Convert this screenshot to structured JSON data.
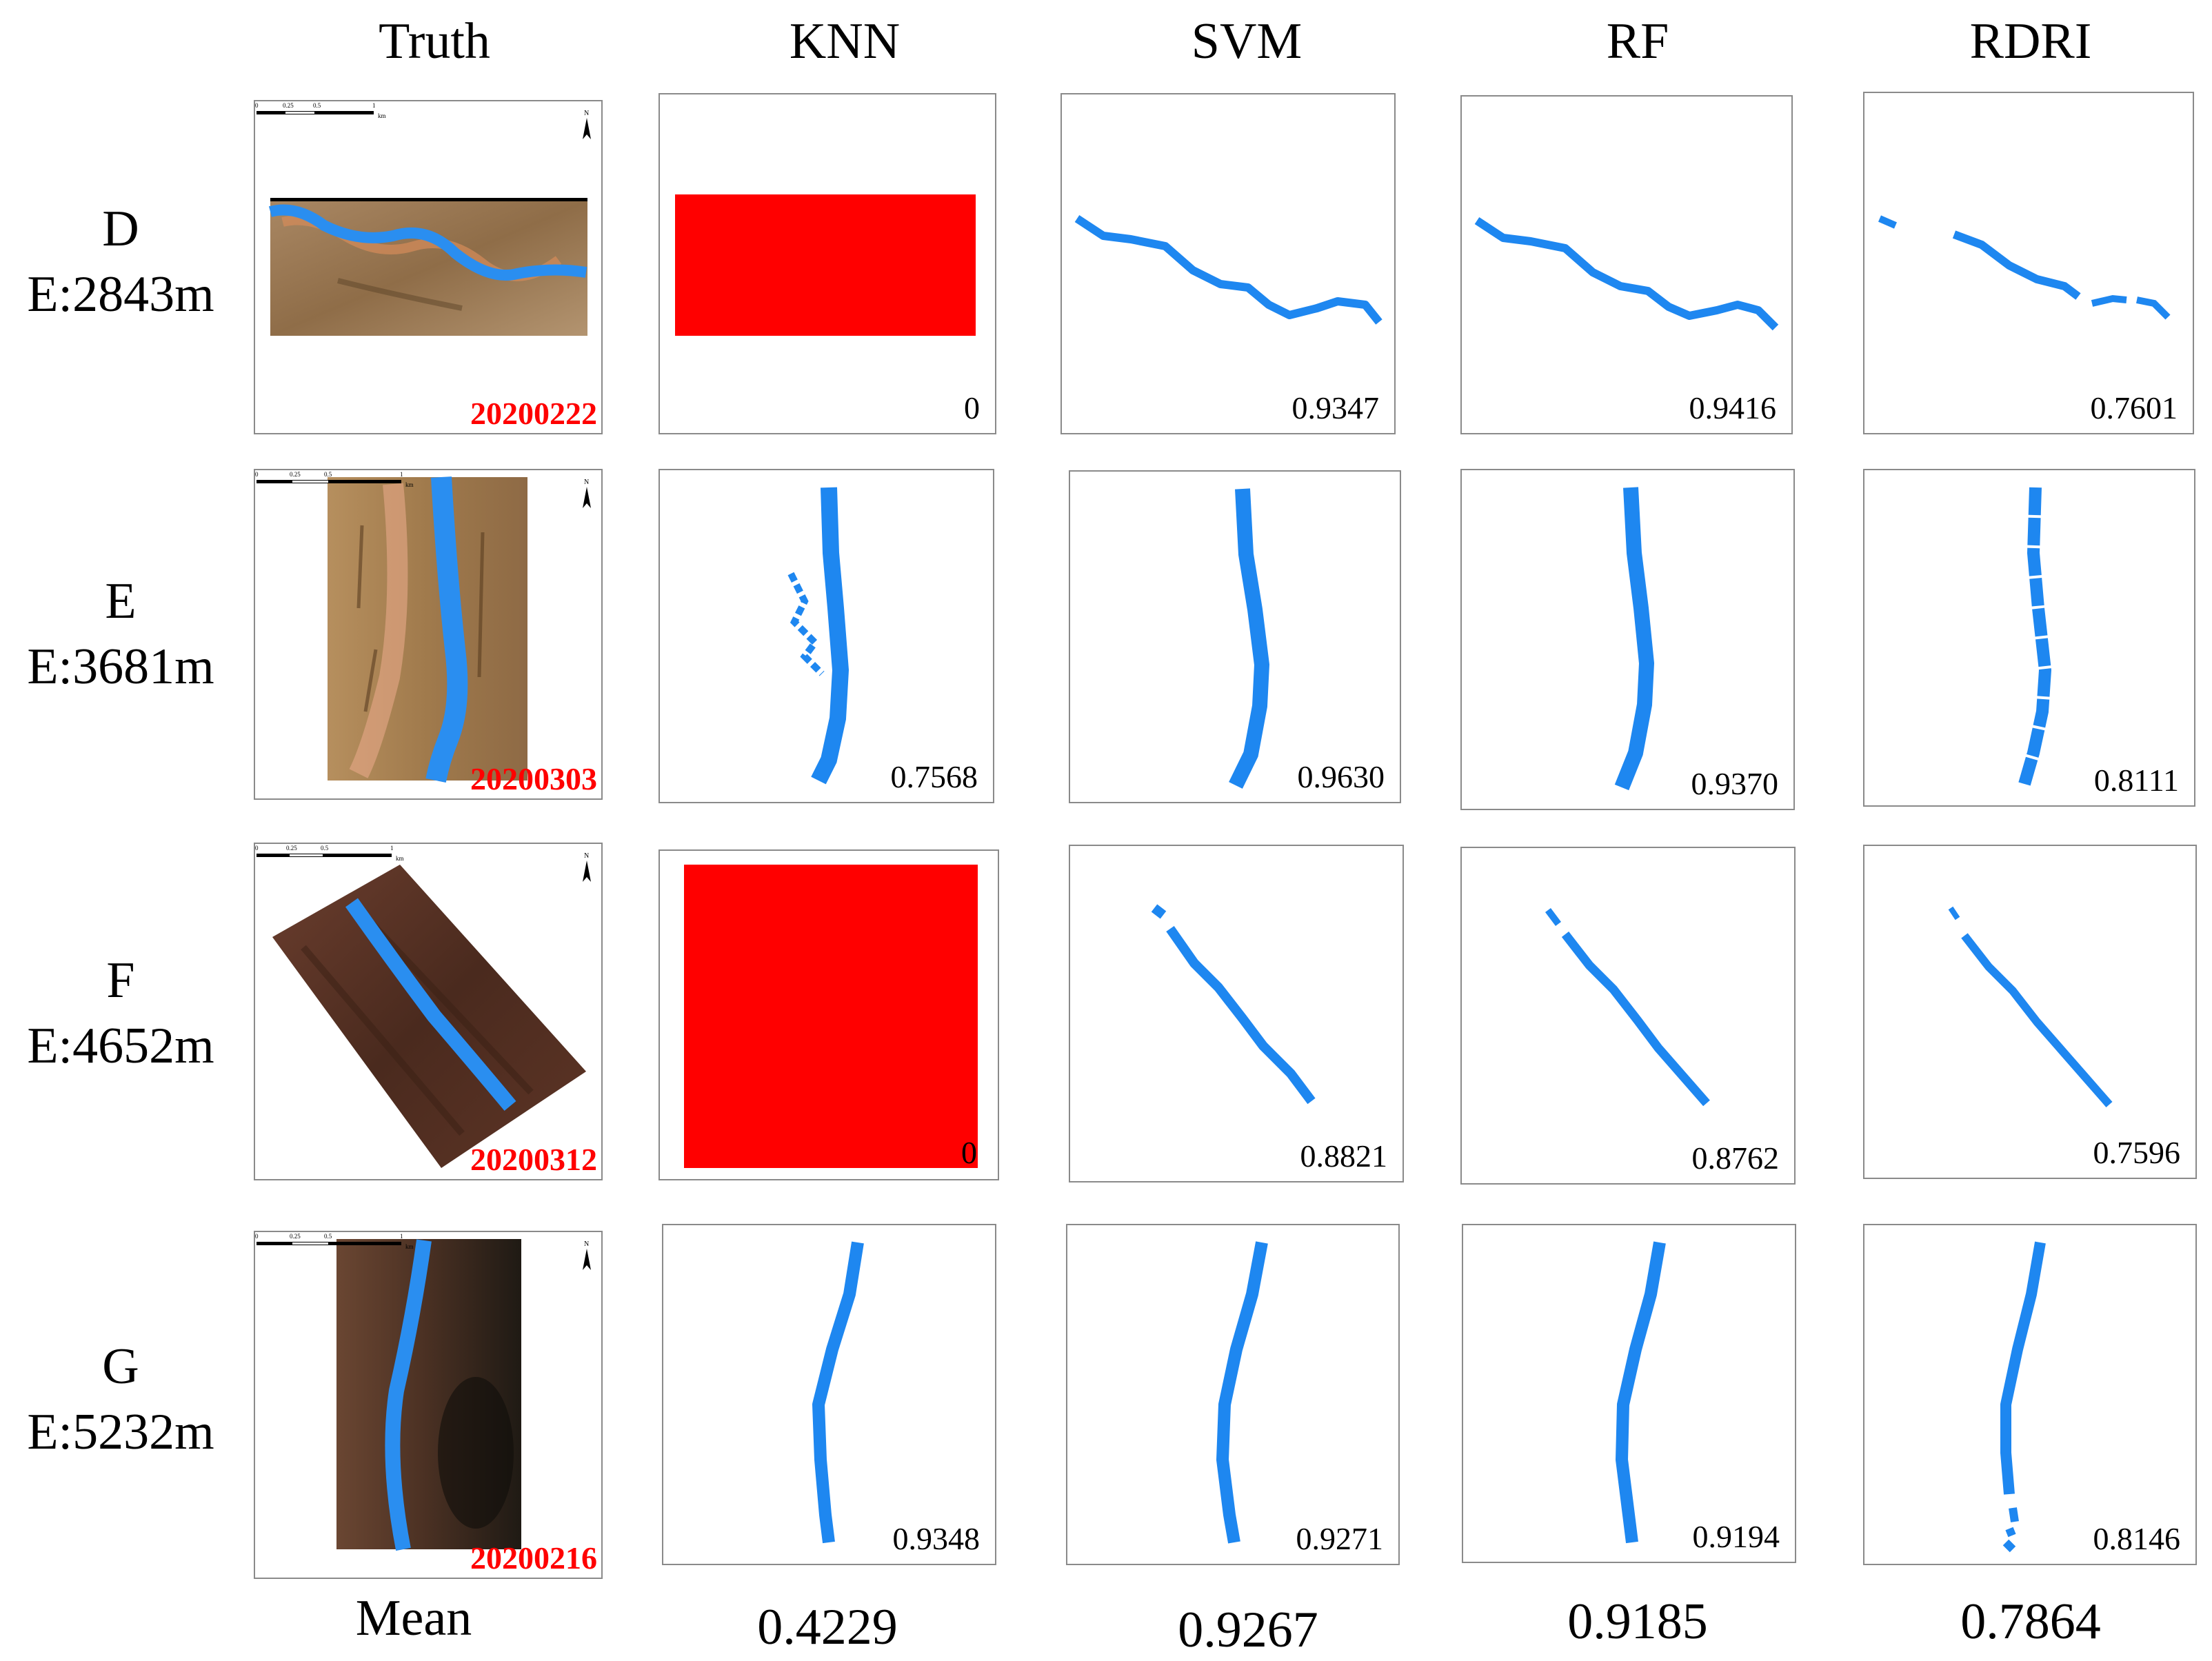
{
  "columns": [
    "Truth",
    "KNN",
    "SVM",
    "RF",
    "RDRI"
  ],
  "rows": [
    {
      "id": "D",
      "label": "D",
      "elevation": "E:2843m",
      "date": "20200222",
      "scores": {
        "knn": "0",
        "svm": "0.9347",
        "rf": "0.9416",
        "rdri": "0.7601"
      }
    },
    {
      "id": "E",
      "label": "E",
      "elevation": "E:3681m",
      "date": "20200303",
      "scores": {
        "knn": "0.7568",
        "svm": "0.9630",
        "rf": "0.9370",
        "rdri": "0.8111"
      }
    },
    {
      "id": "F",
      "label": "F",
      "elevation": "E:4652m",
      "date": "20200312",
      "scores": {
        "knn": "0",
        "svm": "0.8821",
        "rf": "0.8762",
        "rdri": "0.7596"
      }
    },
    {
      "id": "G",
      "label": "G",
      "elevation": "E:5232m",
      "date": "20200216",
      "scores": {
        "knn": "0.9348",
        "svm": "0.9271",
        "rf": "0.9194",
        "rdri": "0.8146"
      }
    }
  ],
  "mean": {
    "label": "Mean",
    "knn": "0.4229",
    "svm": "0.9267",
    "rf": "0.9185",
    "rdri": "0.7864"
  },
  "scalebar": {
    "ticks": [
      "0",
      "0.25",
      "0.5",
      "1"
    ],
    "unit": "km"
  },
  "north_label": "N",
  "colors": {
    "water": "#1e87f0",
    "failure": "#ff0000",
    "date": "#ff0000",
    "border": "#8a8a8a"
  }
}
